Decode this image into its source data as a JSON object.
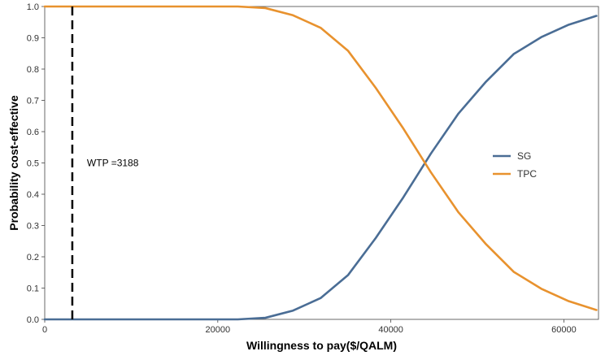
{
  "chart_data": {
    "type": "line",
    "title": "",
    "xlabel": "Willingness to pay($/QALM)",
    "ylabel": "Probability cost-effective",
    "xlim": [
      0,
      64000
    ],
    "ylim": [
      0,
      1
    ],
    "x_ticks": [
      0,
      20000,
      40000,
      60000
    ],
    "x_tick_labels": [
      "0",
      "20000",
      "40000",
      "60000"
    ],
    "y_ticks": [
      0,
      0.1,
      0.2,
      0.3,
      0.4,
      0.5,
      0.6,
      0.7,
      0.8,
      0.9,
      1
    ],
    "y_tick_labels": [
      "0.0",
      "0.1",
      "0.2",
      "0.3",
      "0.4",
      "0.5",
      "0.6",
      "0.7",
      "0.8",
      "0.9",
      "1.0"
    ],
    "grid": false,
    "legend_position": "right",
    "series": [
      {
        "name": "SG",
        "color": "#4a6d95",
        "x": [
          0,
          3188,
          6376,
          9564,
          12752,
          15940,
          19128,
          22316,
          25504,
          28692,
          31880,
          35068,
          38256,
          41444,
          44632,
          47820,
          51008,
          54196,
          57384,
          60572,
          63760
        ],
        "y": [
          0,
          0,
          0,
          0,
          0,
          0,
          0,
          0,
          0.005,
          0.028,
          0.068,
          0.142,
          0.26,
          0.39,
          0.53,
          0.658,
          0.76,
          0.848,
          0.902,
          0.942,
          0.97
        ]
      },
      {
        "name": "TPC",
        "color": "#e8922e",
        "x": [
          0,
          3188,
          6376,
          9564,
          12752,
          15940,
          19128,
          22316,
          25504,
          28692,
          31880,
          35068,
          38256,
          41444,
          44632,
          47820,
          51008,
          54196,
          57384,
          60572,
          63760
        ],
        "y": [
          1,
          1,
          1,
          1,
          1,
          1,
          1,
          1,
          0.995,
          0.972,
          0.932,
          0.858,
          0.74,
          0.61,
          0.47,
          0.342,
          0.24,
          0.152,
          0.098,
          0.058,
          0.03
        ]
      }
    ],
    "reference_line": {
      "x": 3188,
      "style": "dashed",
      "color": "#000000",
      "label": "WTP =3188"
    }
  }
}
